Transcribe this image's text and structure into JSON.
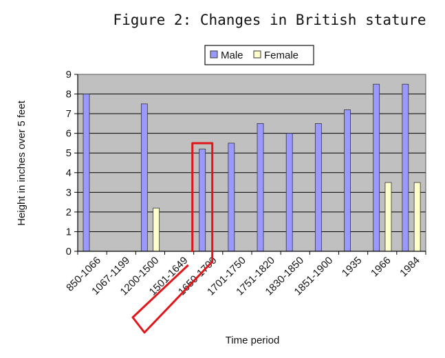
{
  "colors": {
    "plot_background": "#c0c0c0",
    "male": "#9999ff",
    "female": "#ffffcc",
    "bar_outline": "#333333",
    "highlight": "#e0161a"
  },
  "chart_data": {
    "type": "bar",
    "title": "Figure 2: Changes in British stature",
    "xlabel": "Time period",
    "ylabel": "Height in inches over 5 feet",
    "ylim": [
      0,
      9
    ],
    "yticks": [
      "0",
      "1",
      "2",
      "3",
      "4",
      "5",
      "6",
      "7",
      "8",
      "9"
    ],
    "grid": true,
    "legend_position": "top",
    "categories": [
      "850-1066",
      "1067-1199",
      "1200-1500",
      "1501-1649",
      "1650-1700",
      "1701-1750",
      "1751-1820",
      "1830-1850",
      "1851-1900",
      "1935",
      "1966",
      "1984"
    ],
    "series": [
      {
        "name": "Male",
        "values": [
          8,
          null,
          7.5,
          null,
          5.2,
          5.5,
          6.5,
          6,
          6.5,
          7.2,
          8.5,
          8.5
        ]
      },
      {
        "name": "Female",
        "values": [
          null,
          null,
          2.2,
          null,
          null,
          null,
          null,
          null,
          null,
          null,
          3.5,
          3.5
        ]
      }
    ],
    "highlight": {
      "category": "1650-1700",
      "series": "Male"
    }
  }
}
